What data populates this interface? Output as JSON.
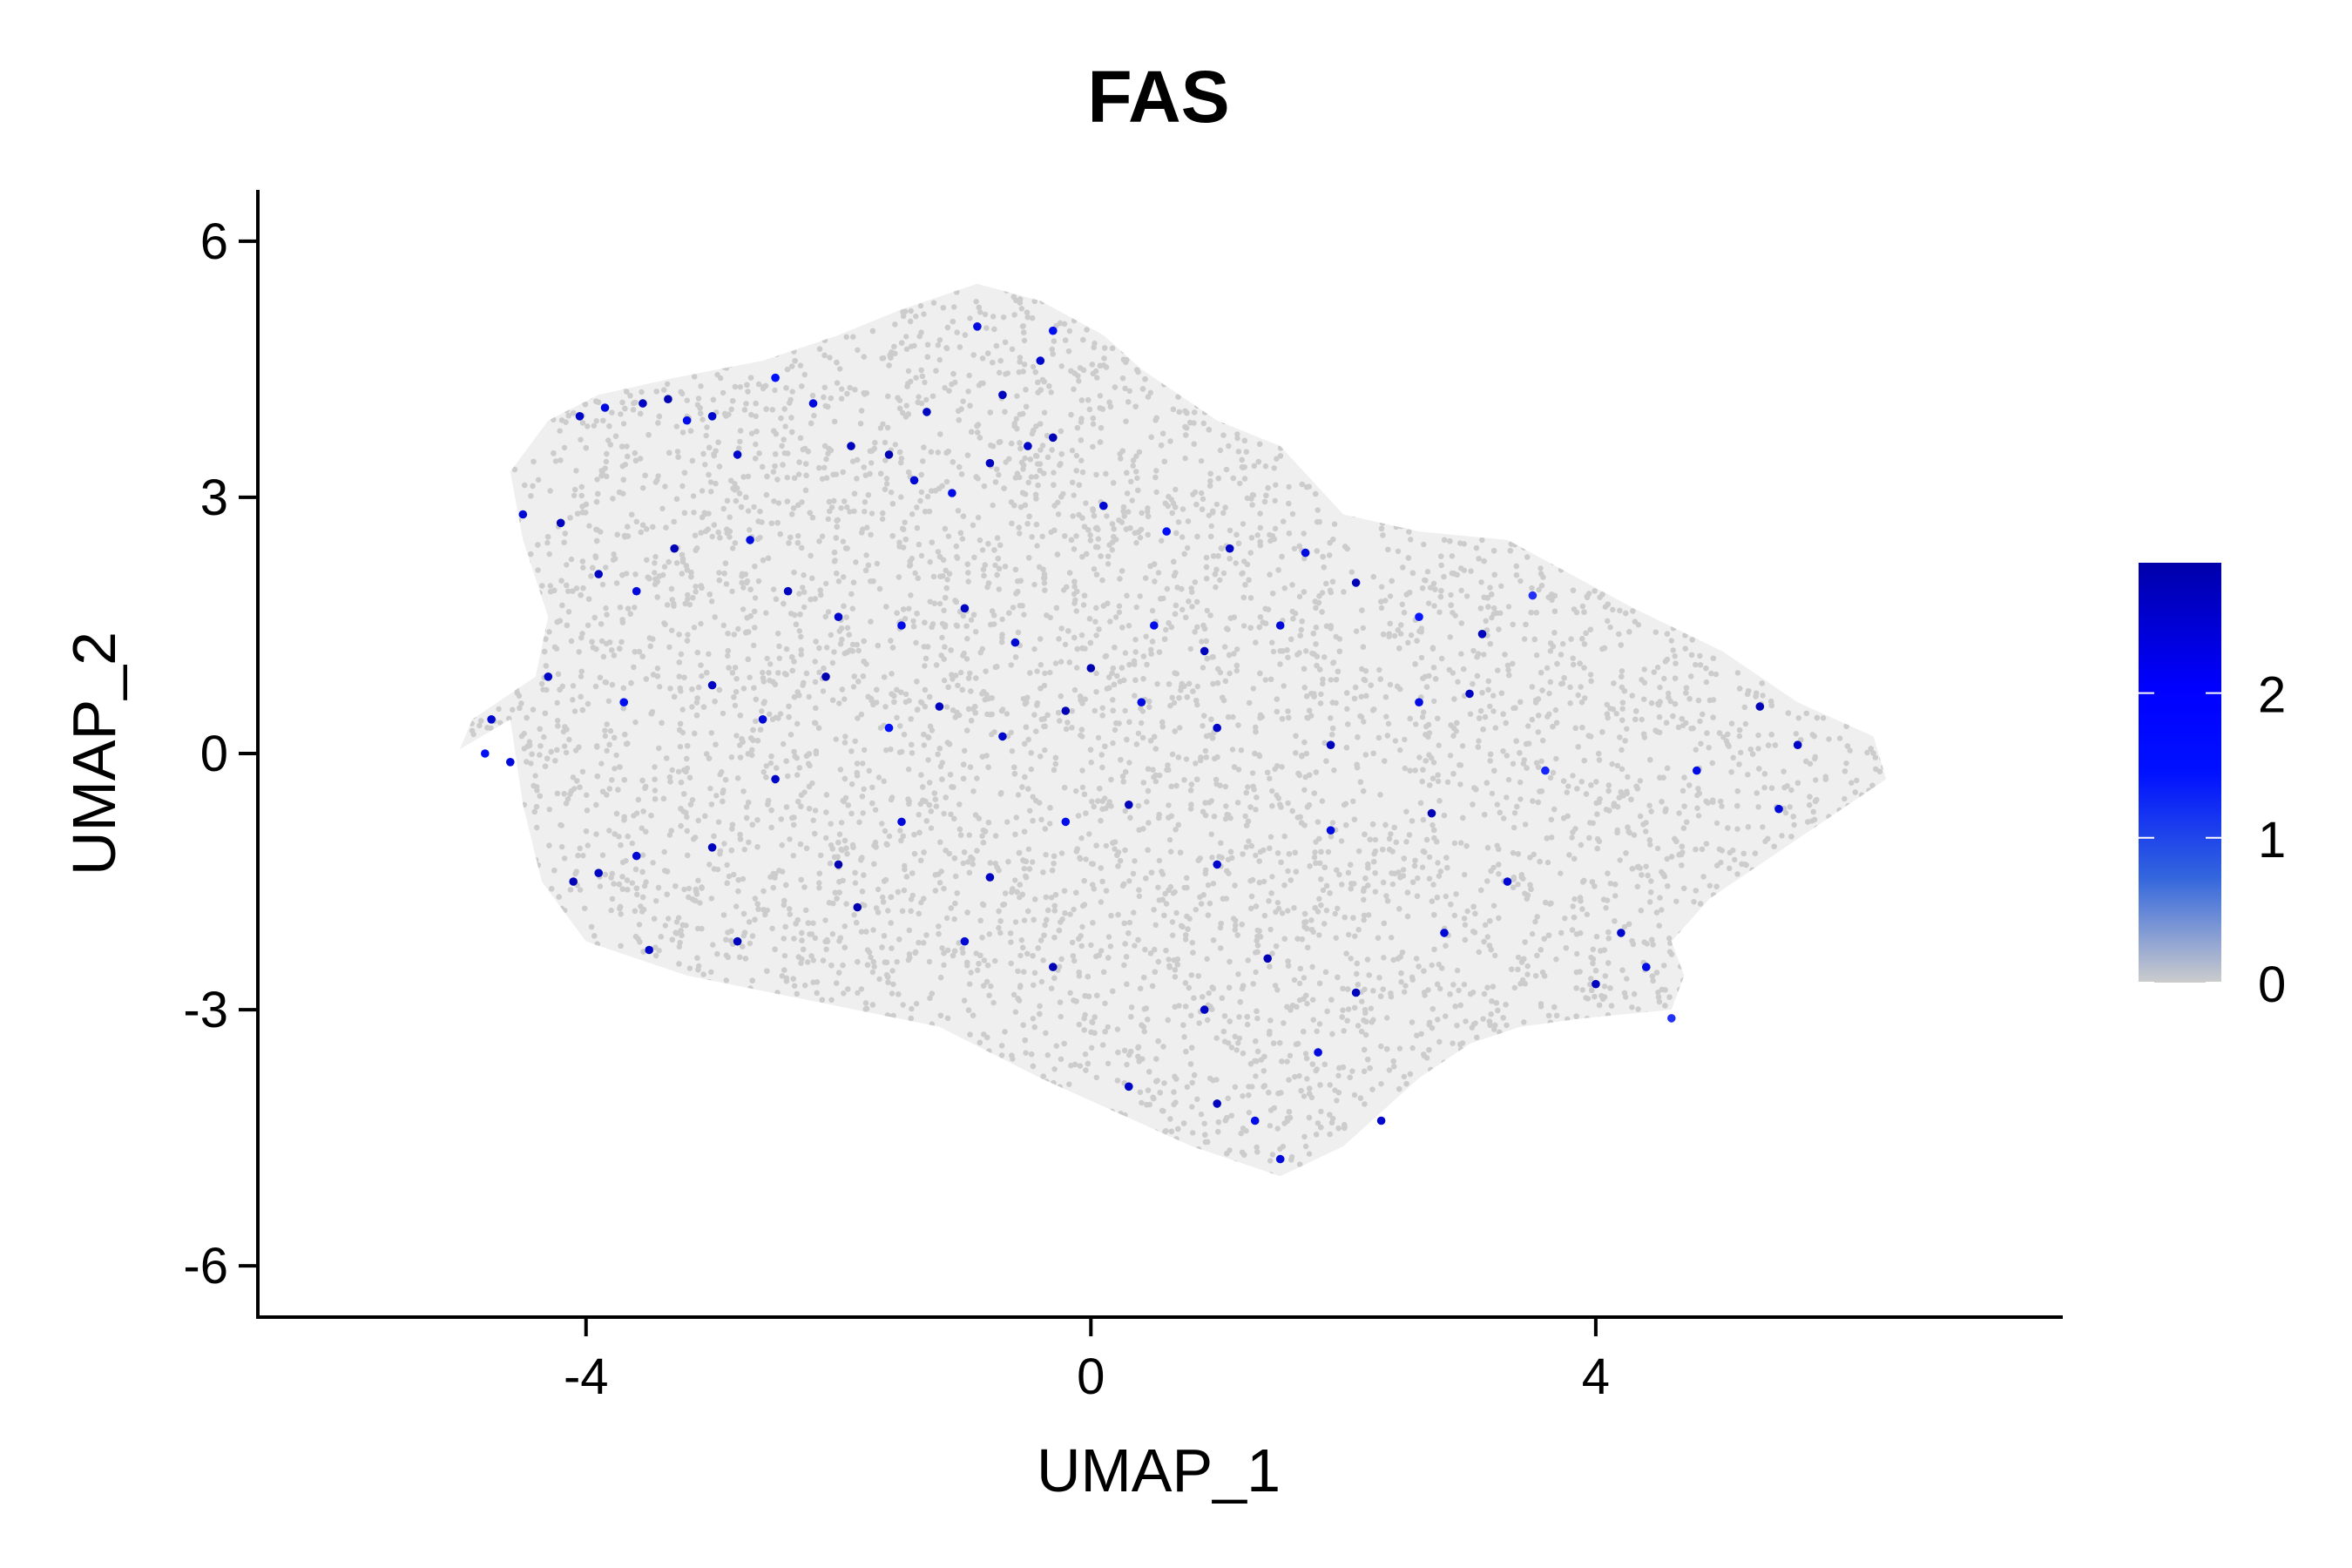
{
  "chart_data": {
    "type": "scatter",
    "title": "FAS",
    "xlabel": "UMAP_1",
    "ylabel": "UMAP_2",
    "xlim": [
      -6.6,
      7.7
    ],
    "ylim": [
      -6.6,
      6.6
    ],
    "x_ticks": [
      -4,
      0,
      4
    ],
    "y_ticks": [
      -6,
      -3,
      0,
      3,
      6
    ],
    "x_tick_labels": [
      "-4",
      "0",
      "4"
    ],
    "y_tick_labels": [
      "-6",
      "-3",
      "0",
      "3",
      "6"
    ],
    "grid": false,
    "legend": {
      "type": "colorbar",
      "placement": "right",
      "min": 0,
      "max": 2.9,
      "ticks": [
        0,
        1,
        2
      ],
      "tick_labels": [
        "0",
        "1",
        "2"
      ],
      "low_color": "#cccccc",
      "high_color": "#0000aa",
      "mid_color": "#0000ff"
    },
    "background_color": "#cccccc",
    "cloud_outline": [
      [
        -5.0,
        0.05
      ],
      [
        -4.6,
        0.4
      ],
      [
        -4.5,
        -0.6
      ],
      [
        -4.35,
        -1.5
      ],
      [
        -4.0,
        -2.2
      ],
      [
        -3.2,
        -2.6
      ],
      [
        -2.2,
        -2.9
      ],
      [
        -1.2,
        -3.2
      ],
      [
        -0.4,
        -3.8
      ],
      [
        0.2,
        -4.2
      ],
      [
        0.8,
        -4.6
      ],
      [
        1.5,
        -4.95
      ],
      [
        2.0,
        -4.6
      ],
      [
        2.6,
        -3.8
      ],
      [
        3.0,
        -3.4
      ],
      [
        3.4,
        -3.2
      ],
      [
        3.9,
        -3.1
      ],
      [
        4.6,
        -3.0
      ],
      [
        4.7,
        -2.6
      ],
      [
        4.6,
        -2.2
      ],
      [
        4.9,
        -1.7
      ],
      [
        5.4,
        -1.2
      ],
      [
        5.9,
        -0.7
      ],
      [
        6.3,
        -0.3
      ],
      [
        6.2,
        0.2
      ],
      [
        5.6,
        0.6
      ],
      [
        5.0,
        1.2
      ],
      [
        4.3,
        1.7
      ],
      [
        3.3,
        2.5
      ],
      [
        2.6,
        2.6
      ],
      [
        2.0,
        2.8
      ],
      [
        1.5,
        3.6
      ],
      [
        1.0,
        3.9
      ],
      [
        0.7,
        4.2
      ],
      [
        0.4,
        4.5
      ],
      [
        0.1,
        4.9
      ],
      [
        -0.4,
        5.3
      ],
      [
        -0.9,
        5.5
      ],
      [
        -1.5,
        5.2
      ],
      [
        -2.0,
        4.9
      ],
      [
        -2.6,
        4.6
      ],
      [
        -3.3,
        4.4
      ],
      [
        -3.9,
        4.2
      ],
      [
        -4.3,
        3.9
      ],
      [
        -4.6,
        3.3
      ],
      [
        -4.5,
        2.5
      ],
      [
        -4.3,
        1.6
      ],
      [
        -4.4,
        0.9
      ],
      [
        -4.9,
        0.4
      ]
    ],
    "expressing_cells": [
      {
        "x": -4.5,
        "y": 2.8,
        "v": 2.2
      },
      {
        "x": -4.2,
        "y": 2.7,
        "v": 2.6
      },
      {
        "x": -4.05,
        "y": 3.95,
        "v": 2.4
      },
      {
        "x": -3.85,
        "y": 4.05,
        "v": 2.0
      },
      {
        "x": -3.55,
        "y": 4.1,
        "v": 2.5
      },
      {
        "x": -3.35,
        "y": 4.15,
        "v": 2.7
      },
      {
        "x": -3.2,
        "y": 3.9,
        "v": 1.8
      },
      {
        "x": -3.0,
        "y": 3.95,
        "v": 2.3
      },
      {
        "x": -2.5,
        "y": 4.4,
        "v": 1.5
      },
      {
        "x": -2.2,
        "y": 4.1,
        "v": 2.1
      },
      {
        "x": -1.9,
        "y": 3.6,
        "v": 2.6
      },
      {
        "x": -1.6,
        "y": 3.5,
        "v": 2.8
      },
      {
        "x": -1.4,
        "y": 3.2,
        "v": 2.2
      },
      {
        "x": -1.1,
        "y": 3.05,
        "v": 1.9
      },
      {
        "x": -0.8,
        "y": 3.4,
        "v": 2.5
      },
      {
        "x": -0.5,
        "y": 3.6,
        "v": 2.4
      },
      {
        "x": -0.3,
        "y": 3.7,
        "v": 2.7
      },
      {
        "x": -0.9,
        "y": 5.0,
        "v": 2.0
      },
      {
        "x": -0.3,
        "y": 4.95,
        "v": 1.7
      },
      {
        "x": -0.4,
        "y": 4.6,
        "v": 2.3
      },
      {
        "x": -0.7,
        "y": 4.2,
        "v": 2.6
      },
      {
        "x": 0.1,
        "y": 2.9,
        "v": 2.2
      },
      {
        "x": 0.6,
        "y": 2.6,
        "v": 1.6
      },
      {
        "x": 1.1,
        "y": 2.4,
        "v": 2.4
      },
      {
        "x": 1.7,
        "y": 2.35,
        "v": 2.0
      },
      {
        "x": 2.1,
        "y": 2.0,
        "v": 2.7
      },
      {
        "x": 2.6,
        "y": 1.6,
        "v": 1.4
      },
      {
        "x": 3.1,
        "y": 1.4,
        "v": 2.6
      },
      {
        "x": 3.5,
        "y": 1.85,
        "v": 1.2
      },
      {
        "x": -3.9,
        "y": 2.1,
        "v": 2.5
      },
      {
        "x": -3.6,
        "y": 1.9,
        "v": 2.1
      },
      {
        "x": -3.3,
        "y": 2.4,
        "v": 2.7
      },
      {
        "x": -2.7,
        "y": 2.5,
        "v": 2.0
      },
      {
        "x": -2.4,
        "y": 1.9,
        "v": 2.6
      },
      {
        "x": -2.0,
        "y": 1.6,
        "v": 2.3
      },
      {
        "x": -1.5,
        "y": 1.5,
        "v": 1.9
      },
      {
        "x": -1.0,
        "y": 1.7,
        "v": 2.5
      },
      {
        "x": -0.6,
        "y": 1.3,
        "v": 2.2
      },
      {
        "x": 0.0,
        "y": 1.0,
        "v": 2.8
      },
      {
        "x": 0.5,
        "y": 1.5,
        "v": 1.8
      },
      {
        "x": 0.9,
        "y": 1.2,
        "v": 2.6
      },
      {
        "x": 1.5,
        "y": 1.5,
        "v": 2.1
      },
      {
        "x": -4.3,
        "y": 0.9,
        "v": 2.4
      },
      {
        "x": -3.7,
        "y": 0.6,
        "v": 1.7
      },
      {
        "x": -3.0,
        "y": 0.8,
        "v": 2.5
      },
      {
        "x": -2.6,
        "y": 0.4,
        "v": 2.2
      },
      {
        "x": -2.1,
        "y": 0.9,
        "v": 2.8
      },
      {
        "x": -1.6,
        "y": 0.3,
        "v": 1.5
      },
      {
        "x": -1.2,
        "y": 0.55,
        "v": 2.6
      },
      {
        "x": -0.7,
        "y": 0.2,
        "v": 2.3
      },
      {
        "x": -0.2,
        "y": 0.5,
        "v": 2.7
      },
      {
        "x": 0.4,
        "y": 0.6,
        "v": 2.0
      },
      {
        "x": 1.0,
        "y": 0.3,
        "v": 2.4
      },
      {
        "x": 1.9,
        "y": 0.1,
        "v": 2.6
      },
      {
        "x": 2.6,
        "y": 0.6,
        "v": 1.9
      },
      {
        "x": 3.0,
        "y": 0.7,
        "v": 2.5
      },
      {
        "x": -4.75,
        "y": 0.4,
        "v": 2.3
      },
      {
        "x": -4.8,
        "y": 0.0,
        "v": 1.6
      },
      {
        "x": -4.6,
        "y": -0.1,
        "v": 2.1
      },
      {
        "x": -3.9,
        "y": -1.4,
        "v": 2.5
      },
      {
        "x": -4.1,
        "y": -1.5,
        "v": 2.7
      },
      {
        "x": -3.6,
        "y": -1.2,
        "v": 2.2
      },
      {
        "x": -3.0,
        "y": -1.1,
        "v": 2.6
      },
      {
        "x": -2.5,
        "y": -0.3,
        "v": 2.4
      },
      {
        "x": -2.0,
        "y": -1.3,
        "v": 2.8
      },
      {
        "x": -1.5,
        "y": -0.8,
        "v": 2.1
      },
      {
        "x": -0.8,
        "y": -1.45,
        "v": 2.5
      },
      {
        "x": -0.2,
        "y": -0.8,
        "v": 1.8
      },
      {
        "x": 0.3,
        "y": -0.6,
        "v": 2.6
      },
      {
        "x": 1.0,
        "y": -1.3,
        "v": 2.3
      },
      {
        "x": 1.9,
        "y": -0.9,
        "v": 2.0
      },
      {
        "x": 2.7,
        "y": -0.7,
        "v": 2.7
      },
      {
        "x": 3.3,
        "y": -1.5,
        "v": 2.2
      },
      {
        "x": 3.6,
        "y": -0.2,
        "v": 1.3
      },
      {
        "x": 4.0,
        "y": -2.7,
        "v": 2.6
      },
      {
        "x": 4.2,
        "y": -2.1,
        "v": 2.3
      },
      {
        "x": 4.4,
        "y": -2.5,
        "v": 1.9
      },
      {
        "x": 4.6,
        "y": -3.1,
        "v": 1.2
      },
      {
        "x": 5.3,
        "y": 0.55,
        "v": 2.7
      },
      {
        "x": 5.6,
        "y": 0.1,
        "v": 2.4
      },
      {
        "x": 5.45,
        "y": -0.65,
        "v": 2.1
      },
      {
        "x": 4.8,
        "y": -0.2,
        "v": 1.9
      },
      {
        "x": -3.5,
        "y": -2.3,
        "v": 2.4
      },
      {
        "x": -2.8,
        "y": -2.2,
        "v": 2.6
      },
      {
        "x": -1.85,
        "y": -1.8,
        "v": 2.8
      },
      {
        "x": -1.0,
        "y": -2.2,
        "v": 2.2
      },
      {
        "x": 0.9,
        "y": -3.0,
        "v": 2.5
      },
      {
        "x": 1.4,
        "y": -2.4,
        "v": 2.7
      },
      {
        "x": 1.8,
        "y": -3.5,
        "v": 2.0
      },
      {
        "x": 2.3,
        "y": -4.3,
        "v": 2.3
      },
      {
        "x": 1.0,
        "y": -4.1,
        "v": 2.6
      },
      {
        "x": 1.3,
        "y": -4.3,
        "v": 1.8
      },
      {
        "x": 1.5,
        "y": -4.75,
        "v": 2.1
      },
      {
        "x": 0.3,
        "y": -3.9,
        "v": 2.4
      },
      {
        "x": 2.1,
        "y": -2.8,
        "v": 2.6
      },
      {
        "x": 2.8,
        "y": -2.1,
        "v": 2.2
      },
      {
        "x": -0.3,
        "y": -2.5,
        "v": 2.7
      },
      {
        "x": -1.3,
        "y": 4.0,
        "v": 2.5
      },
      {
        "x": -2.8,
        "y": 3.5,
        "v": 2.3
      }
    ]
  }
}
